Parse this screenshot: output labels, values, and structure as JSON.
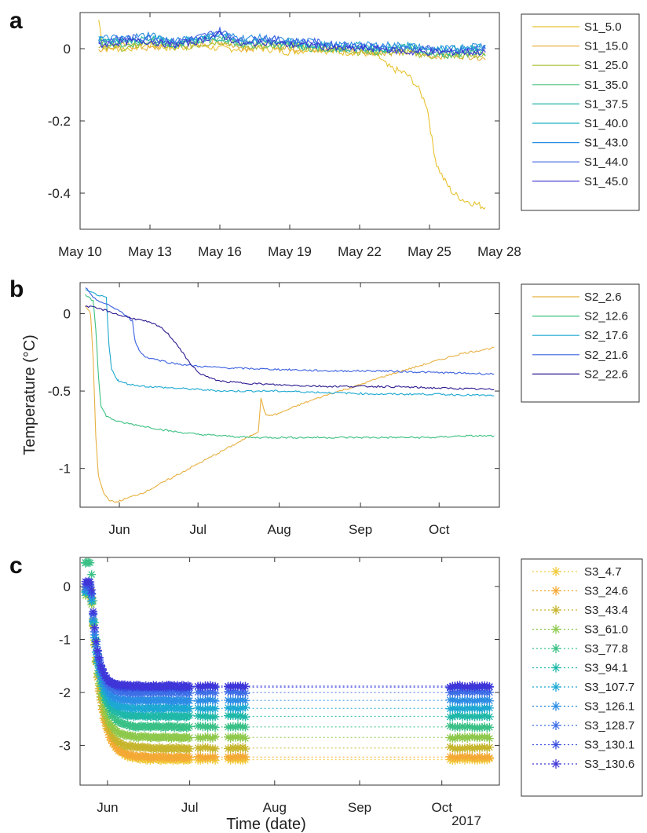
{
  "chart_data": [
    {
      "panel": "a",
      "type": "line",
      "xlabel": "",
      "ylabel": "",
      "x_ticks": [
        "May 10",
        "May 13",
        "May 16",
        "May 19",
        "May 22",
        "May 25",
        "May 28"
      ],
      "x_tick_values": [
        10,
        13,
        16,
        19,
        22,
        25,
        28
      ],
      "xlim": [
        10,
        28
      ],
      "y_ticks": [
        0,
        -0.2,
        -0.4
      ],
      "y_tick_labels": [
        "0",
        "-0.2",
        "-0.4"
      ],
      "ylim": [
        -0.5,
        0.1
      ],
      "legend_position": "right",
      "series": [
        {
          "name": "S1_5.0",
          "color": "#e8c230",
          "x": [
            10.8,
            11,
            12,
            13,
            14,
            15,
            16,
            17,
            18,
            19,
            20,
            21,
            22,
            22.8,
            23.2,
            23.6,
            24,
            24.3,
            24.6,
            24.9,
            25.1,
            25.3,
            25.6,
            26,
            26.5,
            27,
            27.4
          ],
          "values": [
            0.08,
            0.0,
            0.0,
            0.01,
            0.0,
            0.01,
            0.0,
            0.0,
            0.0,
            -0.01,
            0.0,
            -0.01,
            -0.01,
            -0.02,
            -0.05,
            -0.06,
            -0.07,
            -0.09,
            -0.12,
            -0.16,
            -0.25,
            -0.32,
            -0.36,
            -0.4,
            -0.42,
            -0.43,
            -0.44
          ]
        },
        {
          "name": "S1_15.0",
          "color": "#e8b040",
          "x": [
            10.8,
            12,
            13,
            14,
            15,
            16,
            17,
            18,
            19,
            20,
            21,
            22,
            23,
            24,
            25,
            26,
            27,
            27.4
          ],
          "values": [
            0.0,
            0.01,
            0.0,
            0.01,
            0.01,
            0.02,
            0.0,
            0.01,
            0.0,
            0.0,
            0.0,
            -0.01,
            -0.01,
            -0.01,
            -0.02,
            -0.02,
            -0.02,
            -0.03
          ]
        },
        {
          "name": "S1_25.0",
          "color": "#a9c033",
          "x": [
            10.8,
            12,
            13,
            14,
            15,
            16,
            17,
            18,
            19,
            20,
            21,
            22,
            23,
            24,
            25,
            26,
            27,
            27.4
          ],
          "values": [
            0.01,
            0.0,
            0.02,
            0.0,
            0.01,
            0.02,
            0.01,
            0.0,
            0.01,
            0.0,
            0.0,
            -0.01,
            -0.01,
            -0.01,
            -0.02,
            -0.02,
            -0.02,
            -0.02
          ]
        },
        {
          "name": "S1_35.0",
          "color": "#4fc07a",
          "x": [
            10.8,
            12,
            13,
            14,
            15,
            16,
            17,
            18,
            19,
            20,
            21,
            22,
            23,
            24,
            25,
            26,
            27,
            27.4
          ],
          "values": [
            0.02,
            0.01,
            0.02,
            0.01,
            0.02,
            0.03,
            0.01,
            0.01,
            0.01,
            0.0,
            0.0,
            0.0,
            -0.01,
            0.0,
            -0.01,
            -0.02,
            -0.01,
            -0.02
          ]
        },
        {
          "name": "S1_37.5",
          "color": "#22b3a8",
          "x": [
            10.8,
            12,
            13,
            14,
            15,
            16,
            17,
            18,
            19,
            20,
            21,
            22,
            23,
            24,
            25,
            26,
            27,
            27.4
          ],
          "values": [
            0.02,
            0.02,
            0.03,
            0.01,
            0.02,
            0.03,
            0.02,
            0.02,
            0.01,
            0.01,
            0.0,
            0.0,
            0.0,
            0.01,
            -0.01,
            -0.01,
            0.0,
            0.0
          ]
        },
        {
          "name": "S1_40.0",
          "color": "#1cb0c8",
          "x": [
            10.8,
            12,
            13,
            14,
            15,
            16,
            17,
            18,
            19,
            20,
            21,
            22,
            23,
            24,
            25,
            26,
            27,
            27.4
          ],
          "values": [
            0.03,
            0.02,
            0.03,
            0.02,
            0.03,
            0.04,
            0.02,
            0.02,
            0.02,
            0.01,
            0.01,
            0.01,
            0.0,
            0.01,
            0.0,
            0.0,
            0.0,
            0.01
          ]
        },
        {
          "name": "S1_43.0",
          "color": "#2c8ee0",
          "x": [
            10.8,
            12,
            13,
            14,
            15,
            16,
            17,
            18,
            19,
            20,
            21,
            22,
            23,
            24,
            25,
            26,
            27,
            27.4
          ],
          "values": [
            0.03,
            0.03,
            0.04,
            0.02,
            0.03,
            0.04,
            0.03,
            0.03,
            0.02,
            0.02,
            0.01,
            0.01,
            0.01,
            0.01,
            0.0,
            0.0,
            0.01,
            0.01
          ]
        },
        {
          "name": "S1_44.0",
          "color": "#3f62e4",
          "x": [
            10.8,
            12,
            13,
            14,
            15,
            16,
            17,
            18,
            19,
            20,
            21,
            22,
            23,
            24,
            25,
            26,
            27,
            27.4
          ],
          "values": [
            0.02,
            0.03,
            0.03,
            0.02,
            0.03,
            0.05,
            0.02,
            0.03,
            0.02,
            0.02,
            0.01,
            0.01,
            0.0,
            0.0,
            0.0,
            -0.01,
            0.0,
            0.0
          ]
        },
        {
          "name": "S1_45.0",
          "color": "#3a2fd0",
          "x": [
            10.8,
            12,
            13,
            14,
            15,
            16,
            17,
            18,
            19,
            20,
            21,
            22,
            23,
            24,
            25,
            26,
            27,
            27.4
          ],
          "values": [
            0.01,
            0.02,
            0.02,
            0.01,
            0.02,
            0.04,
            0.01,
            0.02,
            0.01,
            0.01,
            0.0,
            0.0,
            0.0,
            -0.01,
            -0.01,
            -0.01,
            -0.01,
            -0.01
          ]
        }
      ]
    },
    {
      "panel": "b",
      "type": "line",
      "xlabel": "",
      "ylabel": "Temperature (°C)",
      "x_ticks": [
        "Jun",
        "Jul",
        "Aug",
        "Sep",
        "Oct"
      ],
      "x_tick_values": [
        0,
        30,
        61,
        92,
        122
      ],
      "xlim": [
        -15,
        145
      ],
      "y_ticks": [
        0,
        -0.5,
        -1
      ],
      "y_tick_labels": [
        "0",
        "-0.5",
        "-1"
      ],
      "ylim": [
        -1.25,
        0.2
      ],
      "legend_position": "right",
      "series": [
        {
          "name": "S2_2.6",
          "color": "#e8b040",
          "x": [
            -13,
            -11,
            -10,
            -9,
            -8,
            -6,
            -4,
            -2,
            0,
            10,
            20,
            30,
            40,
            50,
            53,
            54,
            56,
            60,
            70,
            80,
            90,
            100,
            110,
            120,
            130,
            143
          ],
          "values": [
            0.05,
            0.0,
            -0.3,
            -0.8,
            -1.05,
            -1.16,
            -1.2,
            -1.22,
            -1.21,
            -1.15,
            -1.06,
            -0.97,
            -0.88,
            -0.79,
            -0.76,
            -0.55,
            -0.66,
            -0.65,
            -0.58,
            -0.52,
            -0.47,
            -0.41,
            -0.36,
            -0.31,
            -0.26,
            -0.22
          ]
        },
        {
          "name": "S2_12.6",
          "color": "#3cc080",
          "x": [
            -13,
            -10,
            -9,
            -8,
            -7,
            -5,
            -3,
            0,
            10,
            20,
            30,
            40,
            50,
            60,
            70,
            80,
            90,
            100,
            110,
            120,
            130,
            143
          ],
          "values": [
            0.12,
            0.08,
            -0.1,
            -0.4,
            -0.6,
            -0.66,
            -0.68,
            -0.7,
            -0.73,
            -0.76,
            -0.78,
            -0.79,
            -0.8,
            -0.8,
            -0.8,
            -0.8,
            -0.8,
            -0.8,
            -0.8,
            -0.8,
            -0.79,
            -0.79
          ]
        },
        {
          "name": "S2_17.6",
          "color": "#1ca8d0",
          "x": [
            -13,
            -8,
            -5,
            -4,
            -3,
            -1,
            0,
            5,
            10,
            20,
            30,
            40,
            60,
            80,
            100,
            120,
            143
          ],
          "values": [
            0.15,
            0.12,
            0.1,
            -0.2,
            -0.36,
            -0.42,
            -0.44,
            -0.46,
            -0.47,
            -0.48,
            -0.49,
            -0.5,
            -0.5,
            -0.51,
            -0.52,
            -0.52,
            -0.53
          ]
        },
        {
          "name": "S2_21.6",
          "color": "#3a60e0",
          "x": [
            -13,
            -10,
            -5,
            0,
            5,
            6,
            8,
            10,
            15,
            20,
            30,
            40,
            60,
            80,
            100,
            120,
            143
          ],
          "values": [
            0.17,
            0.1,
            0.06,
            0.02,
            -0.05,
            -0.18,
            -0.25,
            -0.28,
            -0.3,
            -0.32,
            -0.34,
            -0.35,
            -0.36,
            -0.37,
            -0.37,
            -0.38,
            -0.39
          ]
        },
        {
          "name": "S2_22.6",
          "color": "#2a1a90",
          "x": [
            -13,
            -10,
            -5,
            0,
            5,
            10,
            15,
            18,
            22,
            26,
            30,
            35,
            40,
            50,
            60,
            80,
            100,
            120,
            143
          ],
          "values": [
            0.05,
            0.04,
            0.02,
            -0.01,
            -0.03,
            -0.05,
            -0.08,
            -0.12,
            -0.2,
            -0.3,
            -0.38,
            -0.42,
            -0.44,
            -0.45,
            -0.46,
            -0.47,
            -0.47,
            -0.48,
            -0.49
          ]
        }
      ]
    },
    {
      "panel": "c",
      "type": "scatter",
      "xlabel": "Time (date)",
      "ylabel": "",
      "annotation": "2017",
      "x_ticks": [
        "Jun",
        "Jul",
        "Aug",
        "Sep",
        "Oct"
      ],
      "x_tick_values": [
        0,
        30,
        61,
        92,
        122
      ],
      "xlim": [
        -10,
        143
      ],
      "y_ticks": [
        0,
        -1,
        -2,
        -3
      ],
      "y_tick_labels": [
        "0",
        "-1",
        "-2",
        "-3"
      ],
      "ylim": [
        -3.75,
        0.55
      ],
      "legend_position": "right",
      "series": [
        {
          "name": "S3_4.7",
          "color": "#f2c938",
          "start": 0.0,
          "plateau": -3.27,
          "tau": 3.5
        },
        {
          "name": "S3_24.6",
          "color": "#f4a935",
          "start": -0.05,
          "plateau": -3.22,
          "tau": 3.2
        },
        {
          "name": "S3_43.4",
          "color": "#c6b52d",
          "start": -0.1,
          "plateau": -3.05,
          "tau": 3.1
        },
        {
          "name": "S3_61.0",
          "color": "#8dc84b",
          "start": -0.15,
          "plateau": -2.85,
          "tau": 3.0
        },
        {
          "name": "S3_77.8",
          "color": "#39c086",
          "start": 0.45,
          "plateau": -2.65,
          "tau": 2.9
        },
        {
          "name": "S3_94.1",
          "color": "#1fb8a8",
          "start": -0.1,
          "plateau": -2.45,
          "tau": 2.8
        },
        {
          "name": "S3_107.7",
          "color": "#1ca8d2",
          "start": -0.1,
          "plateau": -2.3,
          "tau": 2.6
        },
        {
          "name": "S3_126.1",
          "color": "#2b8ce4",
          "start": -0.05,
          "plateau": -2.15,
          "tau": 2.5
        },
        {
          "name": "S3_128.7",
          "color": "#3c6ee6",
          "start": 0.0,
          "plateau": -2.0,
          "tau": 2.4
        },
        {
          "name": "S3_130.1",
          "color": "#3a4fe0",
          "start": 0.05,
          "plateau": -1.9,
          "tau": 2.3
        },
        {
          "name": "S3_130.6",
          "color": "#3f35d8",
          "start": 0.1,
          "plateau": -1.88,
          "tau": 2.2
        }
      ]
    }
  ]
}
